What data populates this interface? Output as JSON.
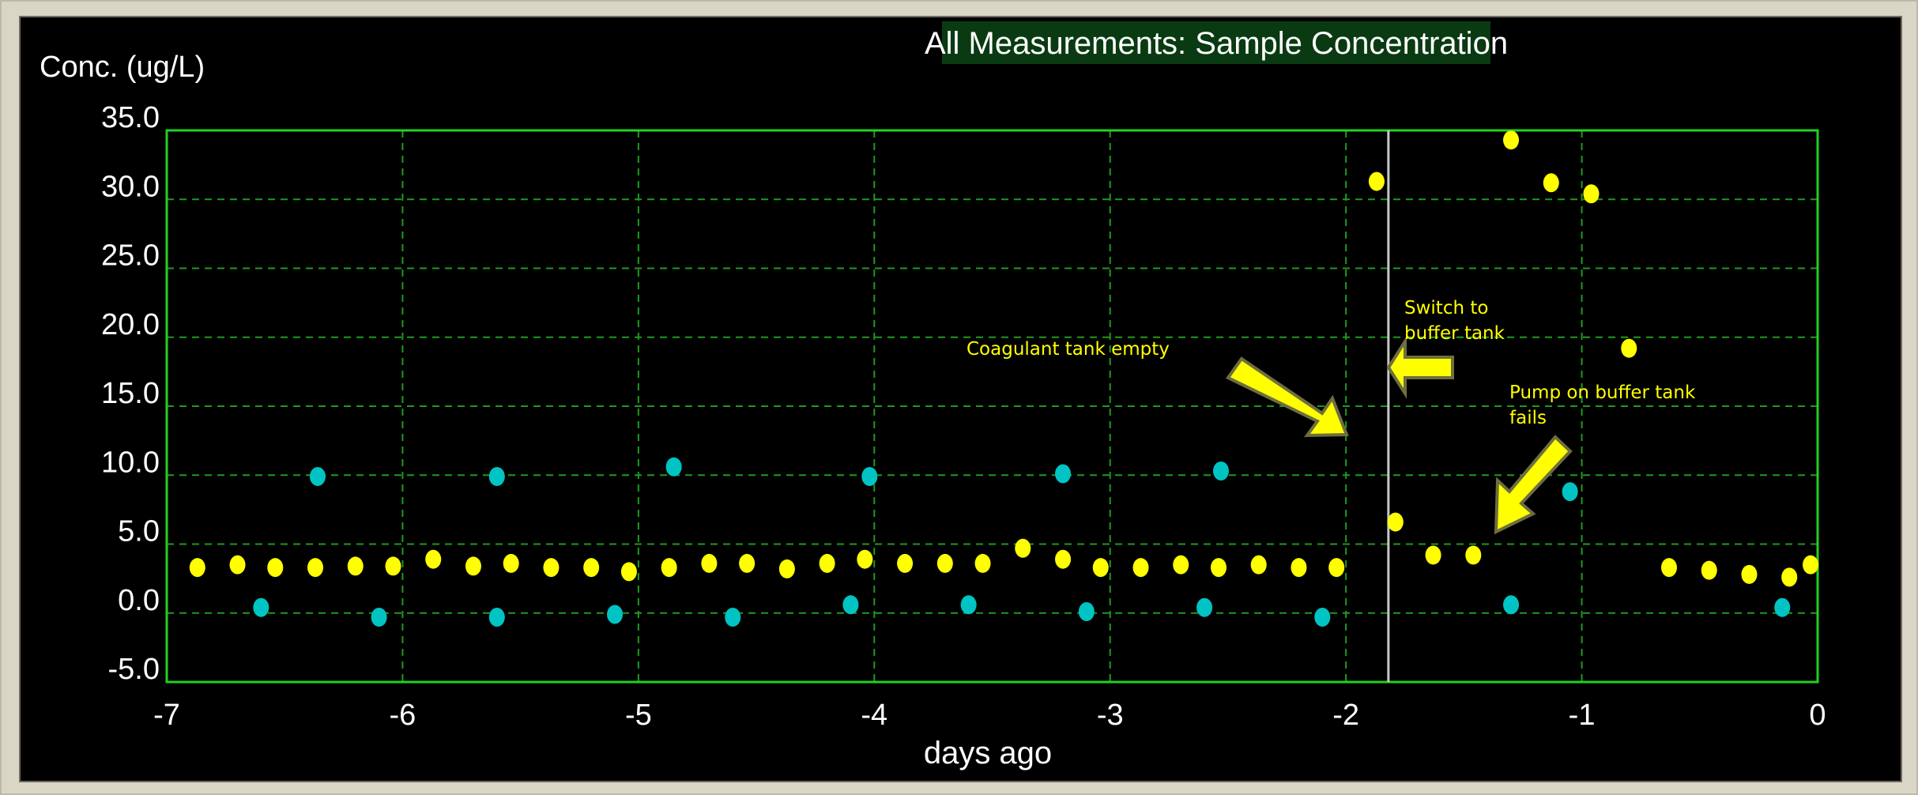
{
  "chart_data": {
    "type": "scatter",
    "title": "All Measurements:  Sample Concentration",
    "ylabel": "Conc. (ug/L)",
    "xlabel": "days ago",
    "xlim": [
      -7,
      0
    ],
    "ylim": [
      -5,
      35
    ],
    "x_ticks": [
      "-7",
      "-6",
      "-5",
      "-4",
      "-3",
      "-2",
      "-1",
      "0"
    ],
    "y_ticks": [
      "35.0",
      "30.0",
      "25.0",
      "20.0",
      "15.0",
      "10.0",
      "5.0",
      "0.0",
      "-5.0"
    ],
    "grid": true,
    "marker_line_x": -1.82,
    "series": [
      {
        "color": "#ffff00",
        "points": [
          [
            -6.87,
            3.3
          ],
          [
            -6.7,
            3.5
          ],
          [
            -6.54,
            3.3
          ],
          [
            -6.37,
            3.3
          ],
          [
            -6.2,
            3.4
          ],
          [
            -6.04,
            3.4
          ],
          [
            -5.87,
            3.9
          ],
          [
            -5.7,
            3.4
          ],
          [
            -5.54,
            3.6
          ],
          [
            -5.37,
            3.3
          ],
          [
            -5.2,
            3.3
          ],
          [
            -5.04,
            3.0
          ],
          [
            -4.87,
            3.3
          ],
          [
            -4.7,
            3.6
          ],
          [
            -4.54,
            3.6
          ],
          [
            -4.37,
            3.2
          ],
          [
            -4.2,
            3.6
          ],
          [
            -4.04,
            3.9
          ],
          [
            -3.87,
            3.6
          ],
          [
            -3.7,
            3.6
          ],
          [
            -3.54,
            3.6
          ],
          [
            -3.37,
            4.7
          ],
          [
            -3.2,
            3.9
          ],
          [
            -3.04,
            3.3
          ],
          [
            -2.87,
            3.3
          ],
          [
            -2.7,
            3.5
          ],
          [
            -2.54,
            3.3
          ],
          [
            -2.37,
            3.5
          ],
          [
            -2.2,
            3.3
          ],
          [
            -2.04,
            3.3
          ],
          [
            -1.87,
            31.3
          ],
          [
            -1.79,
            6.6
          ],
          [
            -1.63,
            4.2
          ],
          [
            -1.46,
            4.2
          ],
          [
            -1.3,
            34.3
          ],
          [
            -1.13,
            31.2
          ],
          [
            -0.96,
            30.4
          ],
          [
            -0.8,
            19.2
          ],
          [
            -0.63,
            3.3
          ],
          [
            -0.46,
            3.1
          ],
          [
            -0.29,
            2.8
          ],
          [
            -0.12,
            2.6
          ],
          [
            -0.03,
            3.5
          ]
        ]
      },
      {
        "color": "#00c4c4",
        "points": [
          [
            -6.6,
            0.4
          ],
          [
            -6.36,
            9.9
          ],
          [
            -6.1,
            -0.3
          ],
          [
            -5.6,
            9.9
          ],
          [
            -5.6,
            -0.3
          ],
          [
            -5.1,
            -0.1
          ],
          [
            -4.85,
            10.6
          ],
          [
            -4.6,
            -0.3
          ],
          [
            -4.1,
            0.6
          ],
          [
            -4.02,
            9.9
          ],
          [
            -3.6,
            0.6
          ],
          [
            -3.2,
            10.1
          ],
          [
            -3.1,
            0.1
          ],
          [
            -2.6,
            0.4
          ],
          [
            -2.53,
            10.3
          ],
          [
            -2.1,
            -0.3
          ],
          [
            -1.05,
            8.8
          ],
          [
            -1.3,
            0.6
          ],
          [
            -0.15,
            0.4
          ]
        ]
      }
    ],
    "annotations": [
      {
        "text": "Coagulant tank empty"
      },
      {
        "text": "Switch to"
      },
      {
        "text": "buffer tank"
      },
      {
        "text": "Pump on buffer tank"
      },
      {
        "text": "fails"
      }
    ]
  }
}
